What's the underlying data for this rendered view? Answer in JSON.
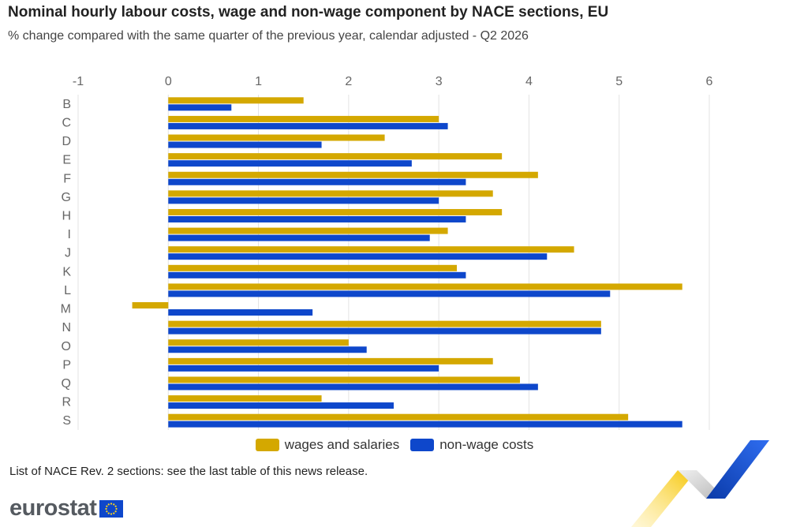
{
  "header": {
    "title": "Nominal hourly labour costs, wage and non-wage component by NACE sections, EU",
    "subtitle": "% change compared with the same quarter of the previous year, calendar adjusted - Q2 2026"
  },
  "chart_data": {
    "type": "bar",
    "orientation": "horizontal",
    "categories": [
      "B",
      "C",
      "D",
      "E",
      "F",
      "G",
      "H",
      "I",
      "J",
      "K",
      "L",
      "M",
      "N",
      "O",
      "P",
      "Q",
      "R",
      "S"
    ],
    "series": [
      {
        "name": "wages and salaries",
        "color": "#d4a800",
        "values": [
          1.5,
          3.0,
          2.4,
          3.7,
          4.1,
          3.6,
          3.7,
          3.1,
          4.5,
          3.2,
          5.7,
          -0.4,
          4.8,
          2.0,
          3.6,
          3.9,
          1.7,
          5.1
        ]
      },
      {
        "name": "non-wage costs",
        "color": "#0e47cb",
        "values": [
          0.7,
          3.1,
          1.7,
          2.7,
          3.3,
          3.0,
          3.3,
          2.9,
          4.2,
          3.3,
          4.9,
          1.6,
          4.8,
          2.2,
          3.0,
          4.1,
          2.5,
          5.7
        ]
      }
    ],
    "xlim": [
      -1,
      6
    ],
    "xticks": [
      "-1",
      "0",
      "1",
      "2",
      "3",
      "4",
      "5",
      "6"
    ],
    "xlabel": "",
    "ylabel": "",
    "grid": "vertical",
    "legend_position": "bottom"
  },
  "footer": {
    "note": "List of NACE Rev. 2 sections: see the last table of this news release.",
    "logo_text": "eurostat"
  },
  "colors": {
    "wages": "#d4a800",
    "non_wage": "#0e47cb",
    "grid": "#e3e3e3",
    "tick_text": "#666666"
  }
}
